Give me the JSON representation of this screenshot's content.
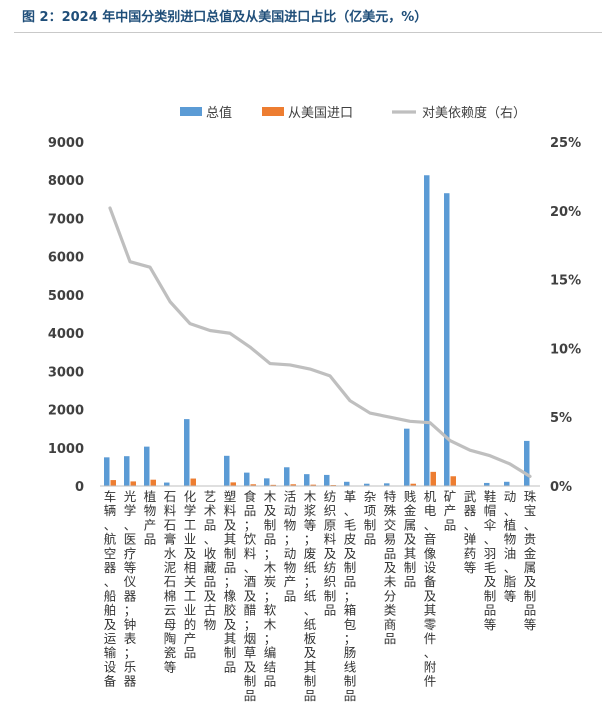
{
  "figure": {
    "title": "图 2：2024 年中国分类别进口总值及从美国进口占比（亿美元，%）"
  },
  "chart_data": {
    "type": "bar",
    "categories": [
      "车辆、航空器、船舶及运输设备",
      "光学、医疗等仪器；钟表；乐器",
      "植物产品",
      "石料石膏水泥石棉云母陶瓷等",
      "化学工业及相关工业的产品",
      "艺术品、收藏品及古物",
      "塑料及其制品；橡胶及其制品",
      "食品；饮料、酒及醋；烟草及制品",
      "木及制品；木炭；软木；编结品",
      "活动物；动物产品",
      "木浆等；废纸；纸、纸板及其制品",
      "纺织原料及纺织制品",
      "革、毛皮及制品；箱包；肠线制品",
      "杂项制品",
      "特殊交易品及未分类商品",
      "贱金属及其制品",
      "机电、音像设备及其零件、附件",
      "矿产品",
      "武器、弹药等",
      "鞋帽伞、羽毛及制品等",
      "动、植物油、脂等",
      "珠宝、贵金属及制品等"
    ],
    "series": [
      {
        "name": "总值",
        "axis": "left",
        "kind": "bar",
        "color": "#5b9bd5",
        "values": [
          750,
          780,
          1030,
          90,
          1750,
          10,
          790,
          350,
          200,
          490,
          310,
          290,
          110,
          60,
          70,
          1500,
          8130,
          7660,
          5,
          80,
          110,
          1180
        ]
      },
      {
        "name": "从美国进口",
        "axis": "left",
        "kind": "bar",
        "color": "#ed7d31",
        "values": [
          155,
          120,
          165,
          12,
          195,
          3,
          95,
          45,
          30,
          45,
          35,
          25,
          10,
          6,
          5,
          60,
          370,
          255,
          1,
          5,
          6,
          10
        ]
      },
      {
        "name": "对美依赖度（右）",
        "axis": "right",
        "kind": "line",
        "color": "#bfbfbf",
        "values": [
          20.2,
          16.3,
          15.9,
          13.4,
          11.8,
          11.3,
          11.1,
          10.1,
          8.9,
          8.8,
          8.5,
          8.0,
          6.2,
          5.3,
          5.0,
          4.7,
          4.6,
          3.3,
          2.6,
          2.2,
          1.6,
          0.7
        ]
      }
    ],
    "y_left": {
      "min": 0,
      "max": 9000,
      "ticks": [
        "0",
        "1000",
        "2000",
        "3000",
        "4000",
        "5000",
        "6000",
        "7000",
        "8000",
        "9000"
      ]
    },
    "y_right": {
      "min": 0,
      "max": 25,
      "ticks": [
        "0%",
        "5%",
        "10%",
        "15%",
        "20%",
        "25%"
      ]
    },
    "legend": {
      "position": "top",
      "items": [
        "总值",
        "从美国进口",
        "对美依赖度（右）"
      ]
    },
    "grid": false
  }
}
